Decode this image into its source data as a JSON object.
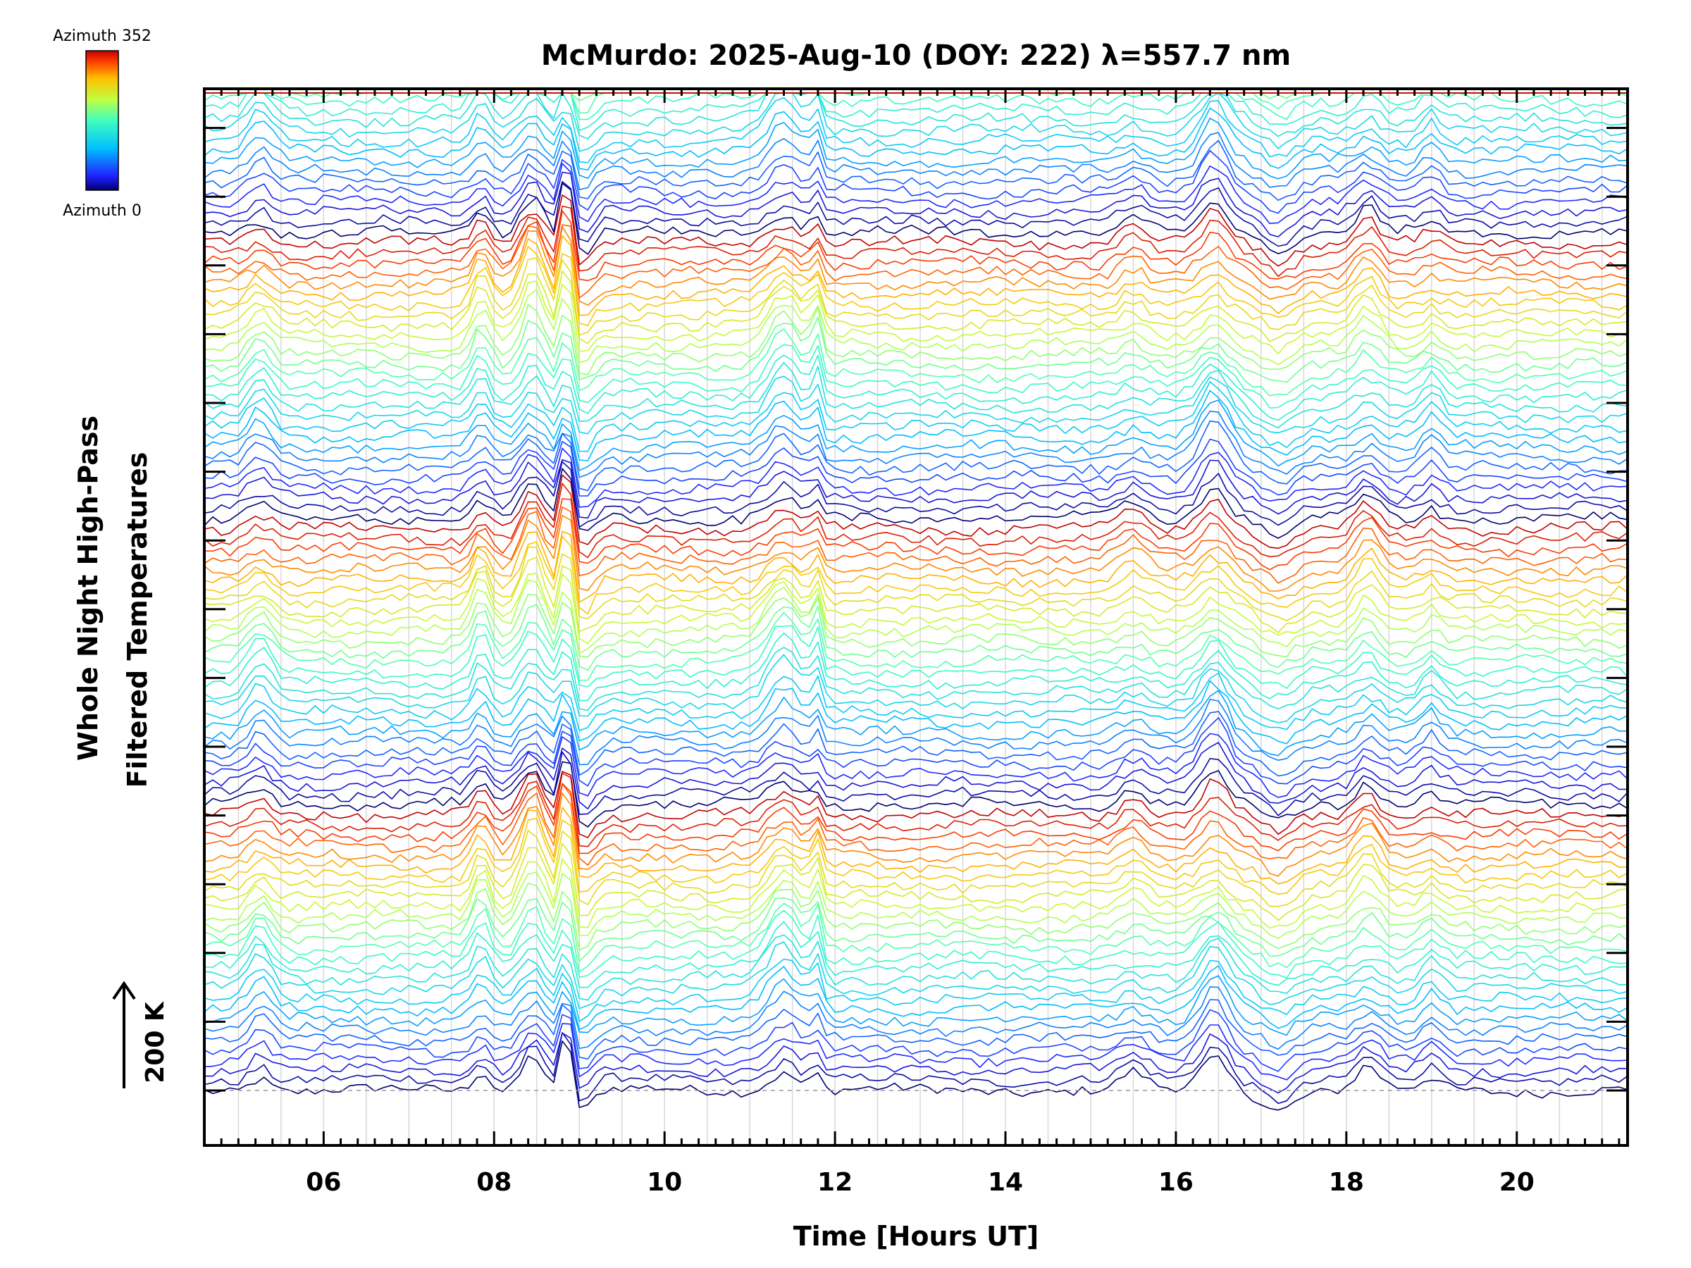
{
  "chart_data": {
    "type": "line",
    "title": "McMurdo: 2025-Aug-10 (DOY: 222) λ=557.7 nm",
    "xlabel": "Time [Hours UT]",
    "ylabel_line1": "Whole Night High-Pass",
    "ylabel_line2": "Filtered Temperatures",
    "xlim": [
      4.6,
      21.3
    ],
    "x_ticks": [
      "06",
      "08",
      "10",
      "12",
      "14",
      "16",
      "18",
      "20"
    ],
    "x_tick_values": [
      6,
      8,
      10,
      12,
      14,
      16,
      18,
      20
    ],
    "scale_label": "200 K",
    "colorbar": {
      "top_label": "Azimuth 352",
      "bottom_label": "Azimuth 0",
      "min": 0,
      "max": 352
    },
    "n_traces": 112,
    "trace_offset_K": 20,
    "events": [
      {
        "t": 5.25,
        "amp": 60,
        "width": 0.18,
        "az_center": 150
      },
      {
        "t": 7.85,
        "amp": 80,
        "width": 0.14,
        "az_center": 220
      },
      {
        "t": 8.45,
        "amp": 110,
        "width": 0.18,
        "az_center": 260
      },
      {
        "t": 8.85,
        "amp": 180,
        "width": 0.07,
        "az_center": 300
      },
      {
        "t": 11.4,
        "amp": 90,
        "width": 0.25,
        "az_center": 170
      },
      {
        "t": 11.78,
        "amp": 80,
        "width": 0.08,
        "az_center": 190
      },
      {
        "t": 15.5,
        "amp": 35,
        "width": 0.2,
        "az_center": 320
      },
      {
        "t": 16.45,
        "amp": 85,
        "width": 0.22,
        "az_center": 80
      },
      {
        "t": 18.25,
        "amp": 60,
        "width": 0.18,
        "az_center": 280
      },
      {
        "t": 19.0,
        "amp": 40,
        "width": 0.15,
        "az_center": 120
      }
    ],
    "dips": [
      {
        "t": 9.05,
        "amp": 40,
        "width": 0.15
      },
      {
        "t": 17.2,
        "amp": 35,
        "width": 0.25
      }
    ]
  }
}
